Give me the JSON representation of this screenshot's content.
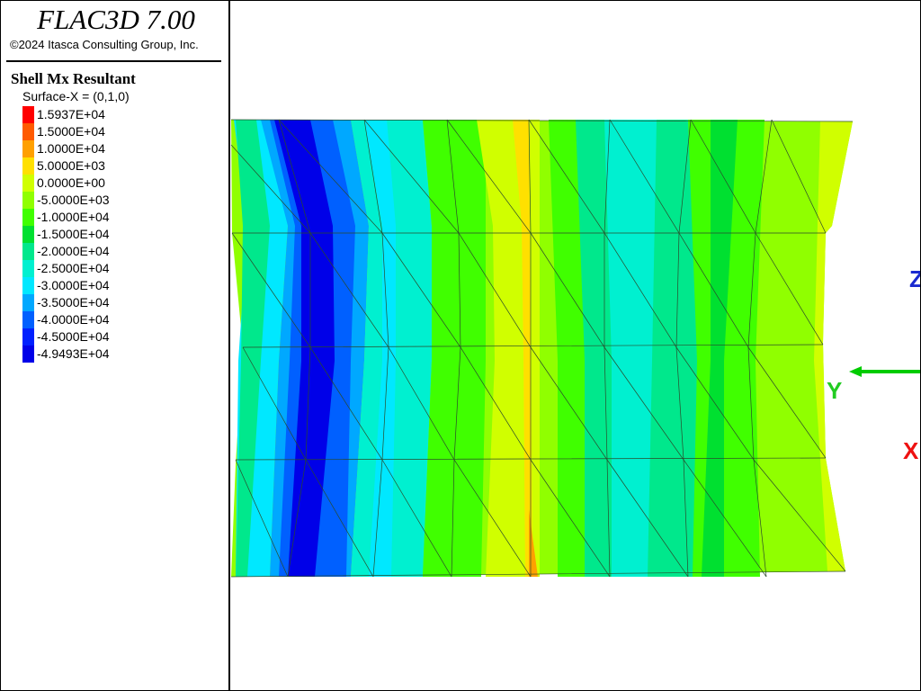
{
  "header": {
    "title": "FLAC3D 7.00",
    "copyright": "©2024 Itasca Consulting Group, Inc."
  },
  "legend": {
    "title": "Shell Mx Resultant",
    "subtitle": "Surface-X = (0,1,0)",
    "entries": [
      {
        "label": "1.5937E+04",
        "color": "#ff0000"
      },
      {
        "label": "1.5000E+04",
        "color": "#ff5a00"
      },
      {
        "label": "1.0000E+04",
        "color": "#ffa000"
      },
      {
        "label": "5.0000E+03",
        "color": "#ffe000"
      },
      {
        "label": "0.0000E+00",
        "color": "#d0ff00"
      },
      {
        "label": "-5.0000E+03",
        "color": "#90ff00"
      },
      {
        "label": "-1.0000E+04",
        "color": "#40ff00"
      },
      {
        "label": "-1.5000E+04",
        "color": "#00e030"
      },
      {
        "label": "-2.0000E+04",
        "color": "#00e88c"
      },
      {
        "label": "-2.5000E+04",
        "color": "#00f0d0"
      },
      {
        "label": "-3.0000E+04",
        "color": "#00e8ff"
      },
      {
        "label": "-3.5000E+04",
        "color": "#00a8ff"
      },
      {
        "label": "-4.0000E+04",
        "color": "#0060ff"
      },
      {
        "label": "-4.5000E+04",
        "color": "#0020ff"
      },
      {
        "label": "-4.9493E+04",
        "color": "#0000e8"
      }
    ]
  },
  "axes": {
    "z": "Z",
    "y": "Y",
    "x": "X"
  }
}
